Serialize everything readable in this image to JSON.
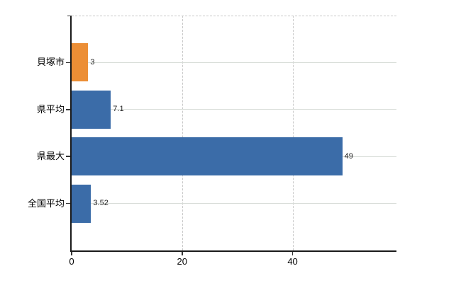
{
  "chart_data": {
    "type": "bar",
    "orientation": "horizontal",
    "title": "",
    "xlabel": "",
    "ylabel": "",
    "categories": [
      "貝塚市",
      "県平均",
      "県最大",
      "全国平均"
    ],
    "values": [
      3,
      7.1,
      49,
      3.52
    ],
    "value_labels": [
      "3",
      "7.1",
      "49",
      "3.52"
    ],
    "series_colors": [
      "#EC8E35",
      "#3B6CA8",
      "#3B6CA8",
      "#3B6CA8"
    ],
    "x_ticks": [
      0,
      20,
      40
    ],
    "x_tick_labels": [
      "0",
      "20",
      "40"
    ],
    "xlim": [
      0,
      58.8
    ],
    "grid": {
      "vertical_style": "dashed",
      "horizontal_style": "solid",
      "top_border_style": "dashed",
      "legend": "none"
    }
  },
  "colors": {
    "bar_orange": "#EC8E35",
    "bar_blue": "#3B6CA8",
    "axis": "#1a1a1a",
    "gridline_solid": "#d8ddd8",
    "gridline_dashed": "#c9c9c9",
    "text": "#111111",
    "background": "#ffffff"
  }
}
